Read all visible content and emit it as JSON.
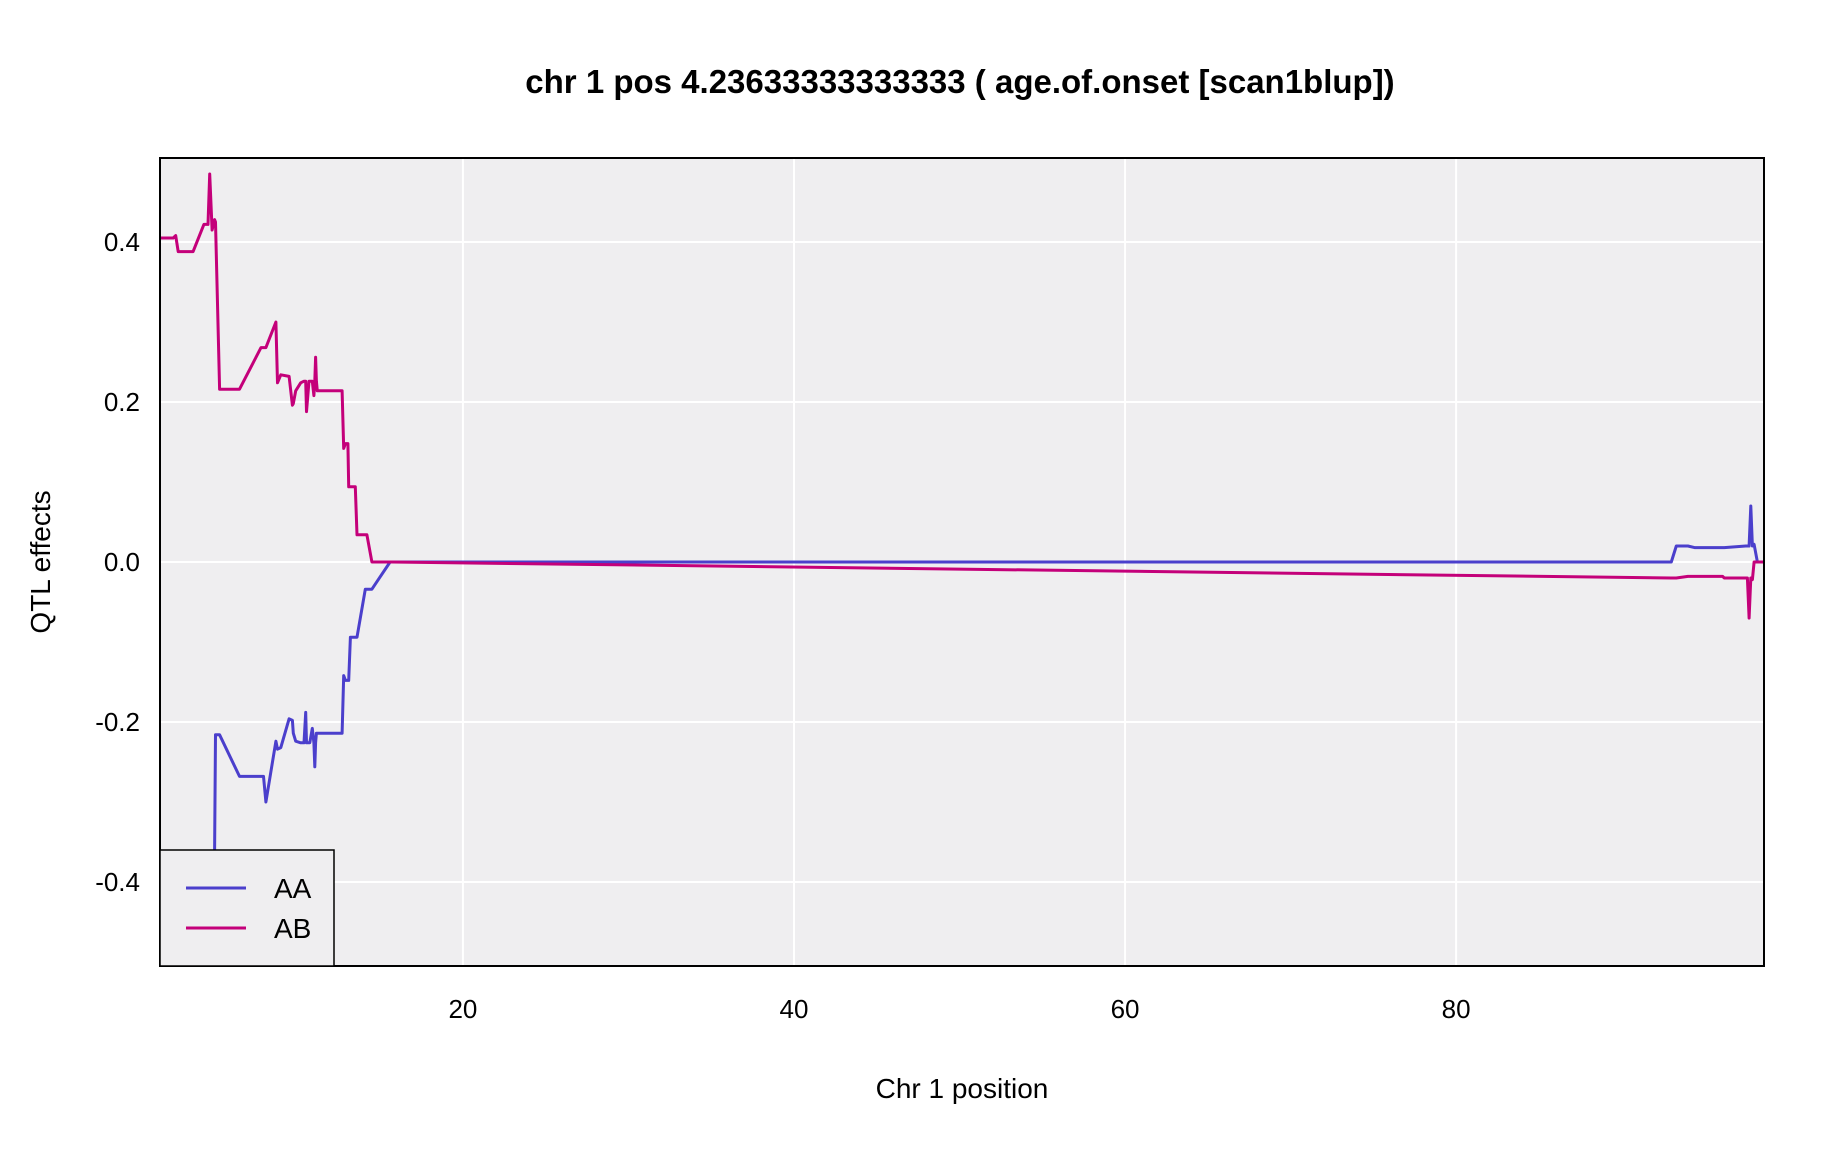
{
  "chart_data": {
    "type": "line",
    "title": "chr 1 pos 4.23633333333333 ( age.of.onset  [scan1blup])",
    "xlabel": "Chr 1 position",
    "ylabel": "QTL effects",
    "xlim": [
      1.7,
      98.6
    ],
    "ylim": [
      -0.505,
      0.505
    ],
    "xticks": [
      20,
      40,
      60,
      80
    ],
    "yticks": [
      -0.4,
      -0.2,
      0.0,
      0.2,
      0.4
    ],
    "xtick_labels": [
      "20",
      "40",
      "60",
      "80"
    ],
    "ytick_labels": [
      "-0.4",
      "-0.2",
      "0.0",
      "0.2",
      "0.4"
    ],
    "grid": true,
    "legend_placement": "bottom-left",
    "series": [
      {
        "name": "AA",
        "color": "#4b3fcc",
        "x": [
          1.7,
          2.5,
          2.65,
          2.8,
          3.6,
          3.7,
          4.35,
          4.5,
          4.6,
          4.7,
          4.85,
          5.0,
          5.05,
          5.3,
          6.5,
          7.8,
          7.95,
          8.1,
          8.7,
          8.8,
          9.0,
          9.5,
          9.7,
          9.75,
          9.9,
          10.2,
          10.4,
          10.5,
          10.55,
          10.7,
          10.75,
          10.9,
          11.0,
          11.05,
          11.1,
          11.15,
          11.2,
          12.7,
          12.8,
          12.9,
          13.0,
          13.05,
          13.1,
          13.2,
          13.5,
          13.6,
          14.1,
          14.2,
          14.5,
          15.6,
          15.7,
          93.0,
          93.3,
          94.0,
          94.4,
          95.8,
          96.1,
          96.2,
          97.5,
          97.6,
          97.7,
          97.8,
          97.9,
          98.0,
          98.2,
          98.4,
          98.6
        ],
        "y": [
          -0.55,
          -0.55,
          -0.55,
          -0.55,
          -0.55,
          -0.55,
          -0.55,
          -0.55,
          -0.55,
          -0.55,
          -0.55,
          -0.36,
          -0.216,
          -0.216,
          -0.268,
          -0.268,
          -0.268,
          -0.3,
          -0.224,
          -0.234,
          -0.232,
          -0.196,
          -0.198,
          -0.214,
          -0.224,
          -0.226,
          -0.226,
          -0.188,
          -0.226,
          -0.226,
          -0.226,
          -0.208,
          -0.226,
          -0.256,
          -0.226,
          -0.214,
          -0.214,
          -0.214,
          -0.142,
          -0.148,
          -0.148,
          -0.148,
          -0.148,
          -0.094,
          -0.094,
          -0.094,
          -0.034,
          -0.034,
          -0.034,
          0.0,
          0.0,
          0.0,
          0.02,
          0.02,
          0.018,
          0.018,
          0.018,
          0.018,
          0.02,
          0.02,
          0.02,
          0.07,
          0.02,
          0.022,
          0.0,
          0.0,
          0.0
        ]
      },
      {
        "name": "AB",
        "color": "#c4007a",
        "x": [
          1.7,
          2.5,
          2.65,
          2.8,
          3.6,
          3.7,
          4.35,
          4.5,
          4.6,
          4.7,
          4.85,
          5.0,
          5.05,
          5.3,
          6.5,
          7.8,
          7.95,
          8.1,
          8.7,
          8.8,
          9.0,
          9.5,
          9.7,
          9.75,
          9.9,
          10.2,
          10.4,
          10.5,
          10.55,
          10.7,
          10.75,
          10.9,
          11.0,
          11.05,
          11.1,
          11.15,
          11.2,
          12.7,
          12.8,
          12.9,
          13.0,
          13.05,
          13.1,
          13.2,
          13.5,
          13.6,
          14.1,
          14.2,
          14.5,
          15.6,
          15.7,
          93.0,
          93.3,
          94.0,
          94.4,
          95.8,
          96.1,
          96.2,
          97.5,
          97.6,
          97.7,
          97.8,
          97.9,
          98.0,
          98.2,
          98.4,
          98.6
        ],
        "y": [
          0.405,
          0.405,
          0.408,
          0.388,
          0.388,
          0.388,
          0.422,
          0.422,
          0.422,
          0.485,
          0.415,
          0.428,
          0.425,
          0.216,
          0.216,
          0.268,
          0.268,
          0.268,
          0.3,
          0.224,
          0.234,
          0.232,
          0.196,
          0.198,
          0.214,
          0.224,
          0.226,
          0.226,
          0.188,
          0.226,
          0.226,
          0.226,
          0.208,
          0.226,
          0.256,
          0.226,
          0.214,
          0.214,
          0.142,
          0.148,
          0.148,
          0.148,
          0.094,
          0.094,
          0.094,
          0.034,
          0.034,
          0.034,
          0.0,
          0.0,
          0.0,
          -0.02,
          -0.02,
          -0.018,
          -0.018,
          -0.018,
          -0.018,
          -0.02,
          -0.02,
          -0.02,
          -0.07,
          -0.02,
          -0.022,
          0.0,
          0.0,
          0.0,
          0.0
        ]
      }
    ]
  }
}
